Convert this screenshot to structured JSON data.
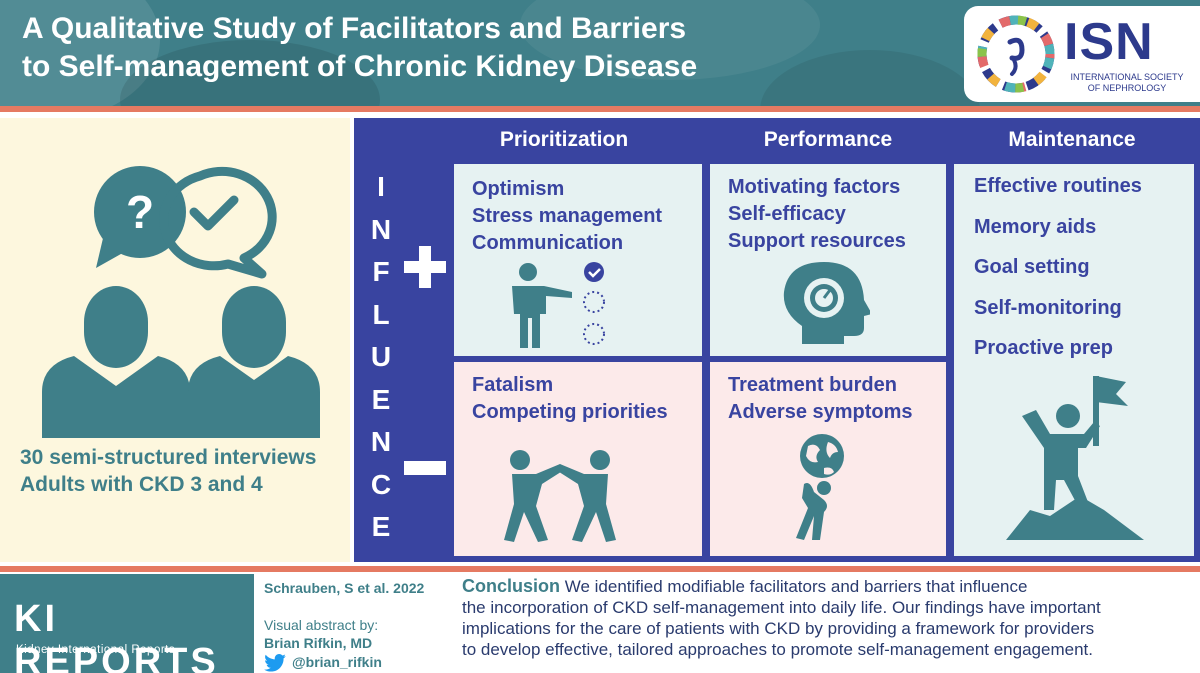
{
  "header": {
    "title_line1": "A Qualitative Study of Facilitators and Barriers",
    "title_line2": "to Self-management of Chronic Kidney Disease",
    "logo_text": "ISN",
    "logo_sub_line1": "INTERNATIONAL SOCIETY",
    "logo_sub_line2": "OF NEPHROLOGY"
  },
  "left": {
    "bubble_question": "?",
    "caption_line1": "30 semi-structured interviews",
    "caption_line2": "Adults with CKD 3 and 4"
  },
  "grid": {
    "columns": [
      "Prioritization",
      "Performance",
      "Maintenance"
    ],
    "influence_letters": [
      "I",
      "N",
      "F",
      "L",
      "U",
      "E",
      "N",
      "C",
      "E"
    ],
    "prioritization_plus": [
      "Optimism",
      "Stress management",
      "Communication"
    ],
    "performance_plus": [
      "Motivating factors",
      "Self-efficacy",
      "Support resources"
    ],
    "prioritization_minus": [
      "Fatalism",
      "Competing priorities"
    ],
    "performance_minus": [
      "Treatment burden",
      "Adverse symptoms"
    ],
    "maintenance": [
      "Effective routines",
      "Memory aids",
      "Goal setting",
      "Self-monitoring",
      "Proactive prep"
    ]
  },
  "footer": {
    "ki_logo": "KI REPORTS",
    "ki_sub": "Kidney International Reports",
    "reference": "Schrauben, S et al. 2022",
    "visual_abstract_label": "Visual abstract by:",
    "author": "Brian Rifkin, MD",
    "twitter_handle": "@brian_rifkin",
    "conclusion_label": "Conclusion",
    "conclusion_line1": " We identified modifiable facilitators and barriers that influence",
    "conclusion_line2": "the incorporation of CKD self-management into daily life. Our findings have important",
    "conclusion_line3": "implications for the care of patients with CKD by providing a framework for providers",
    "conclusion_line4": "to develop effective, tailored approaches to promote self-management engagement."
  },
  "colors": {
    "teal": "#3f7f89",
    "navy": "#3944a0",
    "coral": "#e57a62",
    "cream": "#fdf7de",
    "light_teal": "#e6f2f2",
    "light_pink": "#fceaea"
  },
  "icons": [
    "question-bubble-icon",
    "check-bubble-icon",
    "person-icon",
    "presenter-checklist-icon",
    "head-gear-icon",
    "wrestlers-icon",
    "burden-globe-icon",
    "summit-flag-icon",
    "twitter-icon"
  ]
}
